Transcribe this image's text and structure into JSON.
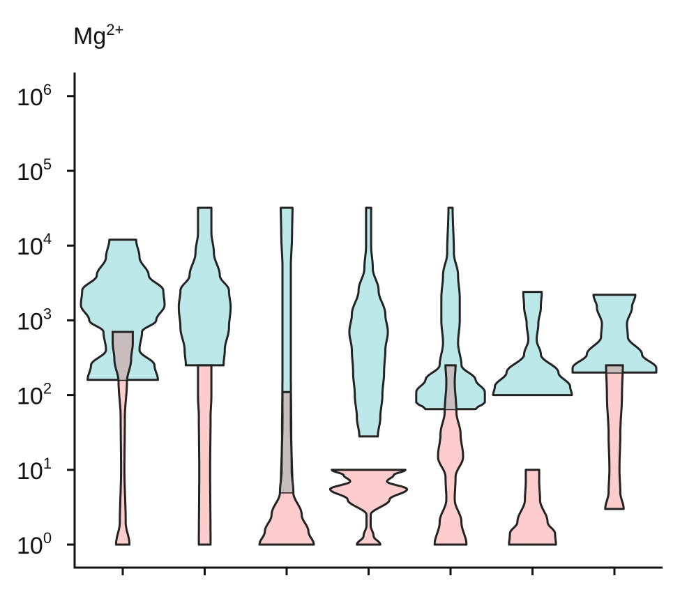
{
  "chart_data": {
    "type": "violin",
    "title": "Mg",
    "title_superscript": "2+",
    "xlabel": "",
    "ylabel": "",
    "y_scale": "log10",
    "ylim": [
      0.6,
      1600000
    ],
    "y_ticks": [
      {
        "value": 1,
        "base": "10",
        "exp": "0"
      },
      {
        "value": 10,
        "base": "10",
        "exp": "1"
      },
      {
        "value": 100,
        "base": "10",
        "exp": "2"
      },
      {
        "value": 1000,
        "base": "10",
        "exp": "3"
      },
      {
        "value": 10000,
        "base": "10",
        "exp": "4"
      },
      {
        "value": 100000,
        "base": "10",
        "exp": "5"
      },
      {
        "value": 1000000,
        "base": "10",
        "exp": "6"
      }
    ],
    "categories": [
      "",
      "",
      "",
      "",
      "",
      "",
      ""
    ],
    "grid": false,
    "colors": {
      "high": "#BDE8EA",
      "low": "#FDCCCD",
      "overlap": "#C9BEBE",
      "outline": "#222222"
    },
    "series": [
      {
        "key": "high",
        "violins": [
          {
            "min": 160,
            "max": 12000,
            "profile": [
              [
                160,
                0.84
              ],
              [
                250,
                0.76
              ],
              [
                400,
                0.4
              ],
              [
                700,
                0.46
              ],
              [
                1000,
                0.8
              ],
              [
                1600,
                1.0
              ],
              [
                2500,
                0.97
              ],
              [
                4000,
                0.62
              ],
              [
                7000,
                0.4
              ],
              [
                12000,
                0.32
              ]
            ]
          },
          {
            "min": 250,
            "max": 32000,
            "profile": [
              [
                250,
                0.45
              ],
              [
                400,
                0.48
              ],
              [
                800,
                0.58
              ],
              [
                1500,
                0.62
              ],
              [
                2500,
                0.58
              ],
              [
                4000,
                0.36
              ],
              [
                8000,
                0.22
              ],
              [
                15000,
                0.16
              ],
              [
                32000,
                0.16
              ]
            ]
          },
          {
            "min": 5,
            "max": 32000,
            "profile": [
              [
                5,
                0.14
              ],
              [
                30,
                0.11
              ],
              [
                200,
                0.1
              ],
              [
                1000,
                0.1
              ],
              [
                5000,
                0.1
              ],
              [
                15000,
                0.13
              ],
              [
                32000,
                0.14
              ]
            ]
          },
          {
            "min": 28,
            "max": 32000,
            "profile": [
              [
                28,
                0.22
              ],
              [
                50,
                0.28
              ],
              [
                100,
                0.33
              ],
              [
                200,
                0.37
              ],
              [
                400,
                0.4
              ],
              [
                700,
                0.46
              ],
              [
                1200,
                0.4
              ],
              [
                2500,
                0.24
              ],
              [
                5000,
                0.1
              ],
              [
                10000,
                0.06
              ],
              [
                32000,
                0.06
              ]
            ]
          },
          {
            "min": 65,
            "max": 32000,
            "profile": [
              [
                65,
                0.6
              ],
              [
                80,
                0.82
              ],
              [
                110,
                0.82
              ],
              [
                160,
                0.6
              ],
              [
                250,
                0.26
              ],
              [
                500,
                0.18
              ],
              [
                1000,
                0.22
              ],
              [
                2000,
                0.22
              ],
              [
                4000,
                0.18
              ],
              [
                8000,
                0.08
              ],
              [
                32000,
                0.05
              ]
            ]
          },
          {
            "min": 100,
            "max": 2400,
            "profile": [
              [
                100,
                0.94
              ],
              [
                130,
                0.9
              ],
              [
                200,
                0.62
              ],
              [
                350,
                0.2
              ],
              [
                550,
                0.1
              ],
              [
                900,
                0.14
              ],
              [
                1500,
                0.2
              ],
              [
                2400,
                0.22
              ]
            ]
          },
          {
            "min": 200,
            "max": 2200,
            "profile": [
              [
                200,
                1.0
              ],
              [
                230,
                1.0
              ],
              [
                350,
                0.66
              ],
              [
                600,
                0.32
              ],
              [
                900,
                0.3
              ],
              [
                1500,
                0.42
              ],
              [
                2200,
                0.5
              ]
            ]
          }
        ]
      },
      {
        "key": "low",
        "violins": [
          {
            "min": 1,
            "max": 700,
            "profile": [
              [
                1,
                0.16
              ],
              [
                2,
                0.07
              ],
              [
                10,
                0.04
              ],
              [
                50,
                0.05
              ],
              [
                150,
                0.1
              ],
              [
                300,
                0.2
              ],
              [
                500,
                0.24
              ],
              [
                700,
                0.24
              ]
            ]
          },
          {
            "min": 1,
            "max": 250,
            "profile": [
              [
                1,
                0.14
              ],
              [
                10,
                0.13
              ],
              [
                50,
                0.14
              ],
              [
                100,
                0.16
              ],
              [
                250,
                0.16
              ]
            ]
          },
          {
            "min": 1,
            "max": 110,
            "profile": [
              [
                1,
                0.65
              ],
              [
                1.5,
                0.52
              ],
              [
                2.5,
                0.36
              ],
              [
                5,
                0.16
              ],
              [
                10,
                0.12
              ],
              [
                50,
                0.1
              ],
              [
                110,
                0.1
              ]
            ]
          },
          {
            "min": 1,
            "max": 10,
            "profile": [
              [
                1,
                0.28
              ],
              [
                1.3,
                0.12
              ],
              [
                1.8,
                0.05
              ],
              [
                2.5,
                0.05
              ],
              [
                4,
                0.5
              ],
              [
                5.5,
                0.92
              ],
              [
                7,
                0.44
              ],
              [
                8.5,
                0.6
              ],
              [
                10,
                0.88
              ]
            ]
          },
          {
            "min": 1,
            "max": 250,
            "profile": [
              [
                1,
                0.38
              ],
              [
                2,
                0.26
              ],
              [
                4,
                0.1
              ],
              [
                8,
                0.12
              ],
              [
                15,
                0.3
              ],
              [
                30,
                0.24
              ],
              [
                60,
                0.14
              ],
              [
                150,
                0.1
              ],
              [
                250,
                0.12
              ]
            ]
          },
          {
            "min": 1,
            "max": 10,
            "profile": [
              [
                1,
                0.56
              ],
              [
                1.4,
                0.54
              ],
              [
                2,
                0.36
              ],
              [
                4,
                0.18
              ],
              [
                7,
                0.16
              ],
              [
                10,
                0.16
              ]
            ]
          },
          {
            "min": 3,
            "max": 250,
            "profile": [
              [
                3,
                0.22
              ],
              [
                5,
                0.14
              ],
              [
                10,
                0.12
              ],
              [
                30,
                0.14
              ],
              [
                100,
                0.18
              ],
              [
                250,
                0.2
              ]
            ]
          }
        ]
      }
    ]
  }
}
